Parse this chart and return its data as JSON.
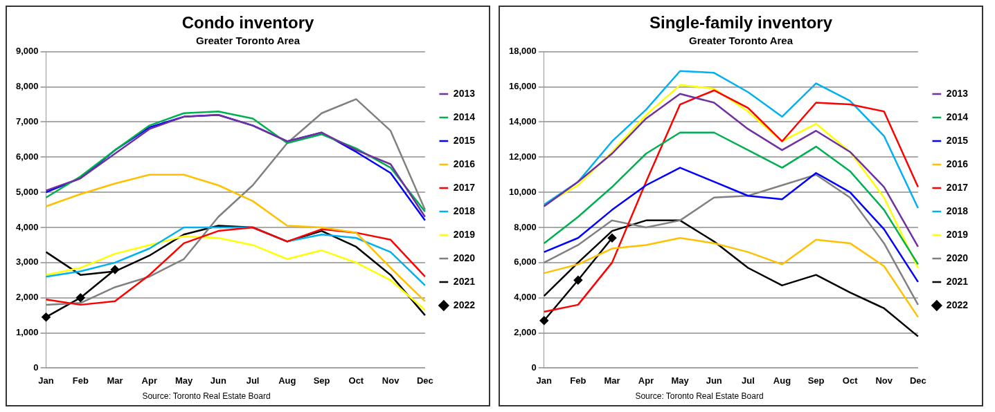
{
  "chart_data": [
    {
      "type": "line",
      "title": "Condo inventory",
      "subtitle": "Greater Toronto Area",
      "annotations": [
        "Source: Toronto Real Estate Board"
      ],
      "categories": [
        "Jan",
        "Feb",
        "Mar",
        "Apr",
        "May",
        "Jun",
        "Jul",
        "Aug",
        "Sep",
        "Oct",
        "Nov",
        "Dec"
      ],
      "ylim": [
        0,
        9000
      ],
      "yticks": [
        {
          "value": 0,
          "label": "0"
        },
        {
          "value": 1000,
          "label": "1,000"
        },
        {
          "value": 2000,
          "label": "2,000"
        },
        {
          "value": 3000,
          "label": "3,000"
        },
        {
          "value": 4000,
          "label": "4,000"
        },
        {
          "value": 5000,
          "label": "5,000"
        },
        {
          "value": 6000,
          "label": "6,000"
        },
        {
          "value": 7000,
          "label": "7,000"
        },
        {
          "value": 8000,
          "label": "8,000"
        },
        {
          "value": 9000,
          "label": "9,000"
        }
      ],
      "grid": "y",
      "legend": "right",
      "series": [
        {
          "name": "2013",
          "color": "#7030a0",
          "marker": "none",
          "values": [
            5050,
            5400,
            6100,
            6800,
            7150,
            7200,
            6900,
            6450,
            6700,
            6200,
            5800,
            4300
          ]
        },
        {
          "name": "2014",
          "color": "#00b050",
          "marker": "none",
          "values": [
            4850,
            5450,
            6200,
            6900,
            7250,
            7300,
            7100,
            6400,
            6650,
            6250,
            5700,
            4450
          ]
        },
        {
          "name": "2015",
          "color": "#0000ff",
          "marker": "none",
          "values": [
            5000,
            5400,
            6200,
            6850,
            7150,
            7200,
            6900,
            6450,
            6700,
            6150,
            5550,
            4200
          ]
        },
        {
          "name": "2016",
          "color": "#ffc000",
          "marker": "none",
          "values": [
            4600,
            4950,
            5250,
            5500,
            5500,
            5200,
            4750,
            4050,
            4000,
            3850,
            2850,
            1900
          ]
        },
        {
          "name": "2017",
          "color": "#ff0000",
          "marker": "none",
          "values": [
            1950,
            1800,
            1900,
            2650,
            3550,
            3900,
            4000,
            3600,
            3950,
            3850,
            3650,
            2600
          ]
        },
        {
          "name": "2018",
          "color": "#00b0f0",
          "marker": "none",
          "values": [
            2600,
            2750,
            3000,
            3400,
            4000,
            4000,
            4000,
            3600,
            3800,
            3700,
            3300,
            2350
          ]
        },
        {
          "name": "2019",
          "color": "#ffff00",
          "marker": "none",
          "values": [
            2650,
            2850,
            3250,
            3500,
            3750,
            3700,
            3500,
            3100,
            3350,
            3000,
            2500,
            1650
          ]
        },
        {
          "name": "2020",
          "color": "#808080",
          "marker": "none",
          "values": [
            1800,
            1850,
            2300,
            2600,
            3100,
            4300,
            5200,
            6400,
            7250,
            7650,
            6750,
            4500
          ]
        },
        {
          "name": "2021",
          "color": "#000000",
          "marker": "none",
          "values": [
            3300,
            2650,
            2750,
            3200,
            3800,
            4050,
            4000,
            3600,
            3900,
            3450,
            2650,
            1500
          ]
        },
        {
          "name": "2022",
          "color": "#000000",
          "marker": "diamond",
          "values": [
            1450,
            2000,
            2800,
            null,
            null,
            null,
            null,
            null,
            null,
            null,
            null,
            null
          ]
        }
      ]
    },
    {
      "type": "line",
      "title": "Single-family inventory",
      "subtitle": "Greater Toronto Area",
      "annotations": [
        "Source: Toronto Real Estate Board"
      ],
      "categories": [
        "Jan",
        "Feb",
        "Mar",
        "Apr",
        "May",
        "Jun",
        "Jul",
        "Aug",
        "Sep",
        "Oct",
        "Nov",
        "Dec"
      ],
      "ylim": [
        0,
        18000
      ],
      "yticks": [
        {
          "value": 0,
          "label": "0"
        },
        {
          "value": 2000,
          "label": "2,000"
        },
        {
          "value": 4000,
          "label": "4,000"
        },
        {
          "value": 6000,
          "label": "6,000"
        },
        {
          "value": 8000,
          "label": "8,000"
        },
        {
          "value": 10000,
          "label": "10,000"
        },
        {
          "value": 12000,
          "label": "12,000"
        },
        {
          "value": 14000,
          "label": "14,000"
        },
        {
          "value": 16000,
          "label": "16,000"
        },
        {
          "value": 18000,
          "label": "18,000"
        }
      ],
      "grid": "y",
      "legend": "right",
      "series": [
        {
          "name": "2013",
          "color": "#7030a0",
          "marker": "none",
          "values": [
            9200,
            10600,
            12200,
            14200,
            15600,
            15100,
            13600,
            12400,
            13500,
            12300,
            10300,
            6900
          ]
        },
        {
          "name": "2014",
          "color": "#00b050",
          "marker": "none",
          "values": [
            7100,
            8600,
            10300,
            12200,
            13400,
            13400,
            12400,
            11400,
            12600,
            11200,
            9000,
            5900
          ]
        },
        {
          "name": "2015",
          "color": "#0000ff",
          "marker": "none",
          "values": [
            6600,
            7400,
            9000,
            10400,
            11400,
            10600,
            9800,
            9600,
            11100,
            10000,
            7900,
            4900
          ]
        },
        {
          "name": "2016",
          "color": "#ffc000",
          "marker": "none",
          "values": [
            5400,
            5900,
            6800,
            7000,
            7400,
            7100,
            6600,
            5900,
            7300,
            7100,
            5800,
            2900
          ]
        },
        {
          "name": "2017",
          "color": "#ff0000",
          "marker": "none",
          "values": [
            3200,
            3600,
            6000,
            10600,
            15000,
            15800,
            14800,
            12900,
            15100,
            15000,
            14600,
            10300
          ]
        },
        {
          "name": "2018",
          "color": "#00b0f0",
          "marker": "none",
          "values": [
            9300,
            10600,
            12900,
            14700,
            16900,
            16800,
            15700,
            14300,
            16200,
            15200,
            13200,
            9100
          ]
        },
        {
          "name": "2019",
          "color": "#ffff00",
          "marker": "none",
          "values": [
            9300,
            10400,
            12300,
            14400,
            16100,
            15900,
            14600,
            12900,
            13900,
            12300,
            9700,
            5700
          ]
        },
        {
          "name": "2020",
          "color": "#808080",
          "marker": "none",
          "values": [
            6000,
            7000,
            8400,
            8000,
            8400,
            9700,
            9800,
            10400,
            11000,
            9700,
            7100,
            3600
          ]
        },
        {
          "name": "2021",
          "color": "#000000",
          "marker": "none",
          "values": [
            4100,
            6000,
            7800,
            8400,
            8400,
            7200,
            5700,
            4700,
            5300,
            4300,
            3400,
            1800
          ]
        },
        {
          "name": "2022",
          "color": "#000000",
          "marker": "diamond",
          "values": [
            2700,
            5000,
            7400,
            null,
            null,
            null,
            null,
            null,
            null,
            null,
            null,
            null
          ]
        }
      ]
    }
  ]
}
